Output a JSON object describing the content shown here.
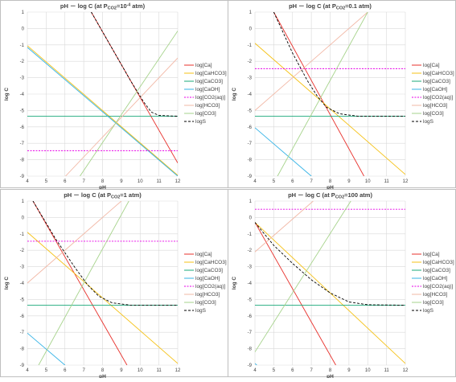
{
  "chart_data": [
    {
      "type": "line",
      "title": "pH － log C (at P",
      "title_sub": "CO2",
      "title_end": "=10",
      "title_sup": "-4",
      "title_unit": " atm)",
      "xlabel": "pH",
      "ylabel": "log C",
      "xlim": [
        4,
        12
      ],
      "ylim": [
        -9,
        1
      ],
      "xticks": [
        "4",
        "5",
        "6",
        "7",
        "8",
        "9",
        "10",
        "11",
        "12"
      ],
      "yticks": [
        "1",
        "0",
        "-1",
        "-2",
        "-3",
        "-4",
        "-5",
        "-6",
        "-7",
        "-8",
        "-9"
      ],
      "grid": true,
      "legend_position": "right",
      "series": [
        {
          "name": "log[Ca]",
          "color": "#e8302b",
          "dash": "",
          "x": [
            7.4,
            12
          ],
          "y": [
            1.0,
            -8.2
          ]
        },
        {
          "name": "log[CaHCO3]",
          "color": "#f5c114",
          "dash": "",
          "x": [
            4,
            12
          ],
          "y": [
            -1.05,
            -8.95
          ]
        },
        {
          "name": "log[CaCO3]",
          "color": "#1aa87a",
          "dash": "",
          "x": [
            4,
            12
          ],
          "y": [
            -5.35,
            -5.35
          ]
        },
        {
          "name": "log[CaOH]",
          "color": "#35b3e6",
          "dash": "",
          "x": [
            4,
            12
          ],
          "y": [
            -1.15,
            -9.0
          ]
        },
        {
          "name": "log[CO2(aq)]",
          "color": "#e800e8",
          "dash": "2,1.5",
          "x": [
            4,
            12
          ],
          "y": [
            -7.45,
            -7.45
          ]
        },
        {
          "name": "log[HCO3]",
          "color": "#f2b8a6",
          "dash": "",
          "x": [
            4,
            12
          ],
          "y": [
            -11.45,
            -1.8
          ]
        },
        {
          "name": "log[CO3]",
          "color": "#a6d38b",
          "dash": "",
          "x": [
            6.8,
            12
          ],
          "y": [
            -9.0,
            -0.15
          ]
        },
        {
          "name": "logS",
          "color": "#000000",
          "dash": "3,2",
          "x": [
            7.4,
            8.5,
            9.5,
            10.2,
            10.6,
            11,
            12
          ],
          "y": [
            1.0,
            -1.2,
            -3.2,
            -4.5,
            -5.1,
            -5.3,
            -5.35
          ]
        }
      ]
    },
    {
      "type": "line",
      "title": "pH － log C (at P",
      "title_sub": "CO2",
      "title_end": "=0.1 atm)",
      "title_sup": "",
      "title_unit": "",
      "xlabel": "pH",
      "ylabel": "log C",
      "xlim": [
        4,
        12
      ],
      "ylim": [
        -9,
        1
      ],
      "xticks": [
        "4",
        "5",
        "6",
        "7",
        "8",
        "9",
        "10",
        "11",
        "12"
      ],
      "yticks": [
        "1",
        "0",
        "-1",
        "-2",
        "-3",
        "-4",
        "-5",
        "-6",
        "-7",
        "-8",
        "-9"
      ],
      "grid": true,
      "legend_position": "right",
      "series": [
        {
          "name": "log[Ca]",
          "color": "#e8302b",
          "dash": "",
          "x": [
            5.0,
            9.8
          ],
          "y": [
            1.0,
            -9.0
          ]
        },
        {
          "name": "log[CaHCO3]",
          "color": "#f5c114",
          "dash": "",
          "x": [
            4,
            12
          ],
          "y": [
            -0.9,
            -8.9
          ]
        },
        {
          "name": "log[CaCO3]",
          "color": "#1aa87a",
          "dash": "",
          "x": [
            4,
            12
          ],
          "y": [
            -5.35,
            -5.35
          ]
        },
        {
          "name": "log[CaOH]",
          "color": "#35b3e6",
          "dash": "",
          "x": [
            4,
            7.0
          ],
          "y": [
            -6.05,
            -9.0
          ]
        },
        {
          "name": "log[CO2(aq)]",
          "color": "#e800e8",
          "dash": "2,1.5",
          "x": [
            4,
            12
          ],
          "y": [
            -2.45,
            -2.45
          ]
        },
        {
          "name": "log[HCO3]",
          "color": "#f2b8a6",
          "dash": "",
          "x": [
            4,
            10.0
          ],
          "y": [
            -5.0,
            1.0
          ]
        },
        {
          "name": "log[CO3]",
          "color": "#a6d38b",
          "dash": "",
          "x": [
            5.2,
            10.0
          ],
          "y": [
            -9.0,
            1.0
          ]
        },
        {
          "name": "logS",
          "color": "#000000",
          "dash": "3,2",
          "x": [
            5.0,
            6.0,
            6.8,
            7.3,
            7.8,
            8.5,
            9.5,
            12
          ],
          "y": [
            1.0,
            -1.5,
            -3.2,
            -4.1,
            -4.8,
            -5.2,
            -5.35,
            -5.35
          ]
        }
      ]
    },
    {
      "type": "line",
      "title": "pH － log C (at P",
      "title_sub": "CO2",
      "title_end": "=1 atm)",
      "title_sup": "",
      "title_unit": "",
      "xlabel": "pH",
      "ylabel": "log C",
      "xlim": [
        4,
        12
      ],
      "ylim": [
        -9,
        1
      ],
      "xticks": [
        "4",
        "5",
        "6",
        "7",
        "8",
        "9",
        "10",
        "11",
        "12"
      ],
      "yticks": [
        "1",
        "0",
        "-1",
        "-2",
        "-3",
        "-4",
        "-5",
        "-6",
        "-7",
        "-8",
        "-9"
      ],
      "grid": true,
      "legend_position": "right",
      "series": [
        {
          "name": "log[Ca]",
          "color": "#e8302b",
          "dash": "",
          "x": [
            4.3,
            9.3
          ],
          "y": [
            1.0,
            -9.0
          ]
        },
        {
          "name": "log[CaHCO3]",
          "color": "#f5c114",
          "dash": "",
          "x": [
            4,
            12
          ],
          "y": [
            -0.9,
            -8.9
          ]
        },
        {
          "name": "log[CaCO3]",
          "color": "#1aa87a",
          "dash": "",
          "x": [
            4,
            12
          ],
          "y": [
            -5.35,
            -5.35
          ]
        },
        {
          "name": "log[CaOH]",
          "color": "#35b3e6",
          "dash": "",
          "x": [
            4,
            6.0
          ],
          "y": [
            -7.05,
            -9.0
          ]
        },
        {
          "name": "log[CO2(aq)]",
          "color": "#e800e8",
          "dash": "2,1.5",
          "x": [
            4,
            12
          ],
          "y": [
            -1.45,
            -1.45
          ]
        },
        {
          "name": "log[HCO3]",
          "color": "#f2b8a6",
          "dash": "",
          "x": [
            4,
            9.0
          ],
          "y": [
            -4.0,
            1.0
          ]
        },
        {
          "name": "log[CO3]",
          "color": "#a6d38b",
          "dash": "",
          "x": [
            4.6,
            9.4
          ],
          "y": [
            -9.0,
            1.0
          ]
        },
        {
          "name": "logS",
          "color": "#000000",
          "dash": "3,2",
          "x": [
            4.3,
            5.5,
            6.5,
            7.2,
            7.8,
            8.5,
            9.5,
            12
          ],
          "y": [
            1.0,
            -1.3,
            -3.0,
            -4.1,
            -4.8,
            -5.2,
            -5.35,
            -5.35
          ]
        }
      ]
    },
    {
      "type": "line",
      "title": "pH － log C (at P",
      "title_sub": "CO2",
      "title_end": "=100 atm)",
      "title_sup": "",
      "title_unit": "",
      "xlabel": "pH",
      "ylabel": "log C",
      "xlim": [
        4,
        12
      ],
      "ylim": [
        -9,
        1
      ],
      "xticks": [
        "4",
        "5",
        "6",
        "7",
        "8",
        "9",
        "10",
        "11",
        "12"
      ],
      "yticks": [
        "1",
        "0",
        "-1",
        "-2",
        "-3",
        "-4",
        "-5",
        "-6",
        "-7",
        "-8",
        "-9"
      ],
      "grid": true,
      "legend_position": "right",
      "series": [
        {
          "name": "log[Ca]",
          "color": "#e8302b",
          "dash": "",
          "x": [
            4,
            8.3
          ],
          "y": [
            -0.3,
            -9.0
          ]
        },
        {
          "name": "log[CaHCO3]",
          "color": "#f5c114",
          "dash": "",
          "x": [
            4,
            12
          ],
          "y": [
            -0.3,
            -8.9
          ]
        },
        {
          "name": "log[CaCO3]",
          "color": "#1aa87a",
          "dash": "",
          "x": [
            4,
            12
          ],
          "y": [
            -5.35,
            -5.35
          ]
        },
        {
          "name": "log[CaOH]",
          "color": "#35b3e6",
          "dash": "",
          "x": [
            4,
            4.1
          ],
          "y": [
            -8.9,
            -9.0
          ]
        },
        {
          "name": "log[CO2(aq)]",
          "color": "#e800e8",
          "dash": "2,1.5",
          "x": [
            4,
            12
          ],
          "y": [
            0.5,
            0.5
          ]
        },
        {
          "name": "log[HCO3]",
          "color": "#f2b8a6",
          "dash": "",
          "x": [
            4,
            7.1
          ],
          "y": [
            -2.1,
            1.0
          ]
        },
        {
          "name": "log[CO3]",
          "color": "#a6d38b",
          "dash": "",
          "x": [
            4,
            9.1
          ],
          "y": [
            -8.2,
            1.0
          ]
        },
        {
          "name": "logS",
          "color": "#000000",
          "dash": "3,2",
          "x": [
            4,
            5.0,
            6.0,
            7.0,
            8.0,
            9.0,
            10.0,
            12
          ],
          "y": [
            -0.3,
            -1.7,
            -2.8,
            -3.8,
            -4.6,
            -5.15,
            -5.32,
            -5.35
          ]
        }
      ]
    }
  ]
}
